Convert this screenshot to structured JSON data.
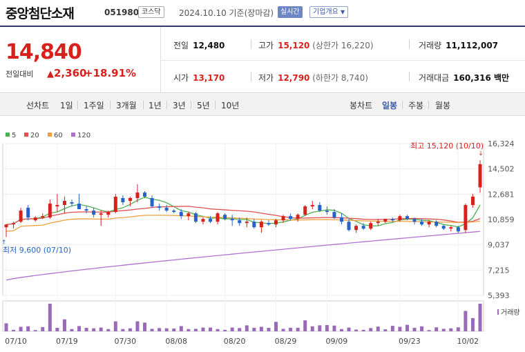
{
  "header": {
    "stock_name": "중앙첨단소재",
    "code": "051980",
    "market": "코스닥",
    "date_basis": "2024.10.10 기준(장마감)",
    "realtime_label": "실시간",
    "company_info_label": "기업개요"
  },
  "summary": {
    "price": "14,840",
    "change_label": "전일대비",
    "change": "2,360",
    "change_pct": "+18.91%",
    "prev_close_label": "전일",
    "prev_close": "12,480",
    "high_label": "고가",
    "high": "15,120",
    "upper_limit_label": "(상한가 16,220)",
    "volume_label": "거래량",
    "volume": "11,112,007",
    "open_label": "시가",
    "open": "13,170",
    "low_label": "저가",
    "low": "12,790",
    "lower_limit_label": "(하한가 8,740)",
    "amount_label": "거래대금",
    "amount": "160,316 백만"
  },
  "toolbar": {
    "line_chart_label": "선차트",
    "periods": [
      "1일",
      "1주일",
      "3개월",
      "1년",
      "3년",
      "5년",
      "10년"
    ],
    "candle_chart_label": "봉차트",
    "candle_periods": [
      "일봉",
      "주봉",
      "월봉"
    ],
    "selected_candle": "일봉"
  },
  "colors": {
    "up": "#d8201c",
    "down": "#2563c8",
    "ma5": "#4caf50",
    "ma20": "#e05050",
    "ma60": "#f0a040",
    "ma120": "#b070d0",
    "volume": "#9a6ab8"
  },
  "chart_data": {
    "type": "candlestick",
    "legend": [
      {
        "name": "5",
        "color": "#4caf50"
      },
      {
        "name": "20",
        "color": "#e05050"
      },
      {
        "name": "60",
        "color": "#f0a040"
      },
      {
        "name": "120",
        "color": "#b070d0"
      }
    ],
    "y_ticks": [
      "16,324",
      "14,502",
      "12,681",
      "10,859",
      "9,037",
      "7,215",
      "5,393"
    ],
    "ylim": [
      5393,
      16324
    ],
    "x_ticks": [
      "07/10",
      "07/19",
      "07/30",
      "08/08",
      "08/20",
      "08/29",
      "09/09",
      "09/23",
      "10/02"
    ],
    "max_label": "최고 15,120 (10/10)",
    "min_label": "최저 9,600 (07/10)",
    "volume_label": "거래량",
    "candles": [
      [
        10300,
        10500,
        9600,
        10500
      ],
      [
        10500,
        10700,
        10200,
        10600
      ],
      [
        10700,
        11700,
        10600,
        11500
      ],
      [
        11700,
        11900,
        10800,
        11000
      ],
      [
        10800,
        11100,
        10700,
        11000
      ],
      [
        11000,
        11300,
        10900,
        11100
      ],
      [
        11000,
        12300,
        10900,
        12000
      ],
      [
        11800,
        12700,
        11400,
        11900
      ],
      [
        11900,
        12500,
        11300,
        12200
      ],
      [
        12100,
        12300,
        11800,
        12000
      ],
      [
        12000,
        12700,
        11600,
        11600
      ],
      [
        11600,
        11800,
        11300,
        11500
      ],
      [
        11500,
        11700,
        11000,
        11200
      ],
      [
        11200,
        11500,
        10400,
        11300
      ],
      [
        11200,
        11500,
        11000,
        11400
      ],
      [
        11400,
        12700,
        11300,
        12500
      ],
      [
        12400,
        12600,
        11900,
        12100
      ],
      [
        12200,
        12500,
        11800,
        12400
      ],
      [
        12400,
        13400,
        12100,
        12800
      ],
      [
        12800,
        12900,
        12400,
        12500
      ],
      [
        12400,
        12600,
        11700,
        11800
      ],
      [
        11800,
        12000,
        11500,
        11700
      ],
      [
        11700,
        11900,
        11400,
        11500
      ],
      [
        11500,
        11600,
        11300,
        11400
      ],
      [
        11400,
        11600,
        10900,
        11100
      ],
      [
        11100,
        11400,
        10800,
        11300
      ],
      [
        11300,
        11400,
        10600,
        10700
      ],
      [
        10700,
        11000,
        10500,
        10900
      ],
      [
        10900,
        11100,
        10600,
        10700
      ],
      [
        10700,
        11400,
        10500,
        11300
      ],
      [
        11200,
        11300,
        10800,
        10900
      ],
      [
        10900,
        11200,
        10400,
        10800
      ],
      [
        10800,
        11000,
        10400,
        10600
      ],
      [
        10600,
        11000,
        10300,
        10700
      ],
      [
        10700,
        10900,
        10200,
        10300
      ],
      [
        10300,
        10800,
        9900,
        10700
      ],
      [
        10600,
        10800,
        10400,
        10500
      ],
      [
        10500,
        10900,
        10300,
        10800
      ],
      [
        10800,
        11200,
        10600,
        11100
      ],
      [
        11100,
        11300,
        10800,
        10900
      ],
      [
        10900,
        11300,
        10700,
        11200
      ],
      [
        11200,
        11900,
        11100,
        11800
      ],
      [
        11800,
        12200,
        11600,
        11900
      ],
      [
        11900,
        12100,
        11400,
        11500
      ],
      [
        11500,
        11800,
        11200,
        11400
      ],
      [
        11400,
        11600,
        10900,
        11000
      ],
      [
        11000,
        11300,
        10500,
        10700
      ],
      [
        10700,
        10900,
        10000,
        10100
      ],
      [
        10100,
        10500,
        9900,
        10400
      ],
      [
        10400,
        10600,
        10100,
        10200
      ],
      [
        10200,
        10700,
        10100,
        10600
      ],
      [
        10600,
        10900,
        10400,
        10700
      ],
      [
        10700,
        10900,
        10600,
        10900
      ],
      [
        10900,
        11000,
        10700,
        10800
      ],
      [
        10800,
        11200,
        10700,
        11100
      ],
      [
        11100,
        11200,
        10800,
        10900
      ],
      [
        10900,
        11000,
        10500,
        10700
      ],
      [
        10700,
        10900,
        10400,
        10500
      ],
      [
        10500,
        10800,
        10300,
        10700
      ],
      [
        10700,
        10800,
        10300,
        10400
      ],
      [
        10400,
        10500,
        10100,
        10200
      ],
      [
        10200,
        10400,
        10000,
        10300
      ],
      [
        10300,
        10400,
        9900,
        10000
      ],
      [
        10100,
        12000,
        9900,
        11900
      ],
      [
        11900,
        12700,
        11700,
        12500
      ],
      [
        13170,
        15120,
        12790,
        14840
      ]
    ],
    "volumes": [
      3.2,
      0.6,
      1.8,
      2.0,
      0.5,
      1.7,
      11.1,
      1.4,
      4.8,
      0.9,
      2.1,
      1.4,
      1.2,
      1.5,
      0.9,
      4.0,
      0.9,
      1.2,
      4.0,
      3.5,
      1.0,
      1.3,
      1.2,
      1.1,
      2.1,
      0.9,
      1.0,
      1.5,
      1.5,
      0.9,
      0.6,
      1.5,
      1.3,
      2.4,
      1.4,
      1.8,
      1.4,
      3.8,
      1.0,
      1.4,
      1.4,
      4.4,
      2.0,
      2.4,
      2.5,
      2.3,
      0.9,
      1.5,
      0.7,
      0.6,
      1.3,
      1.9,
      0.8,
      2.2,
      1.8,
      2.6,
      1.4,
      2.0,
      0.5,
      1.6,
      1.0,
      1.2,
      1.6,
      8.2,
      5.3,
      11.1
    ]
  }
}
